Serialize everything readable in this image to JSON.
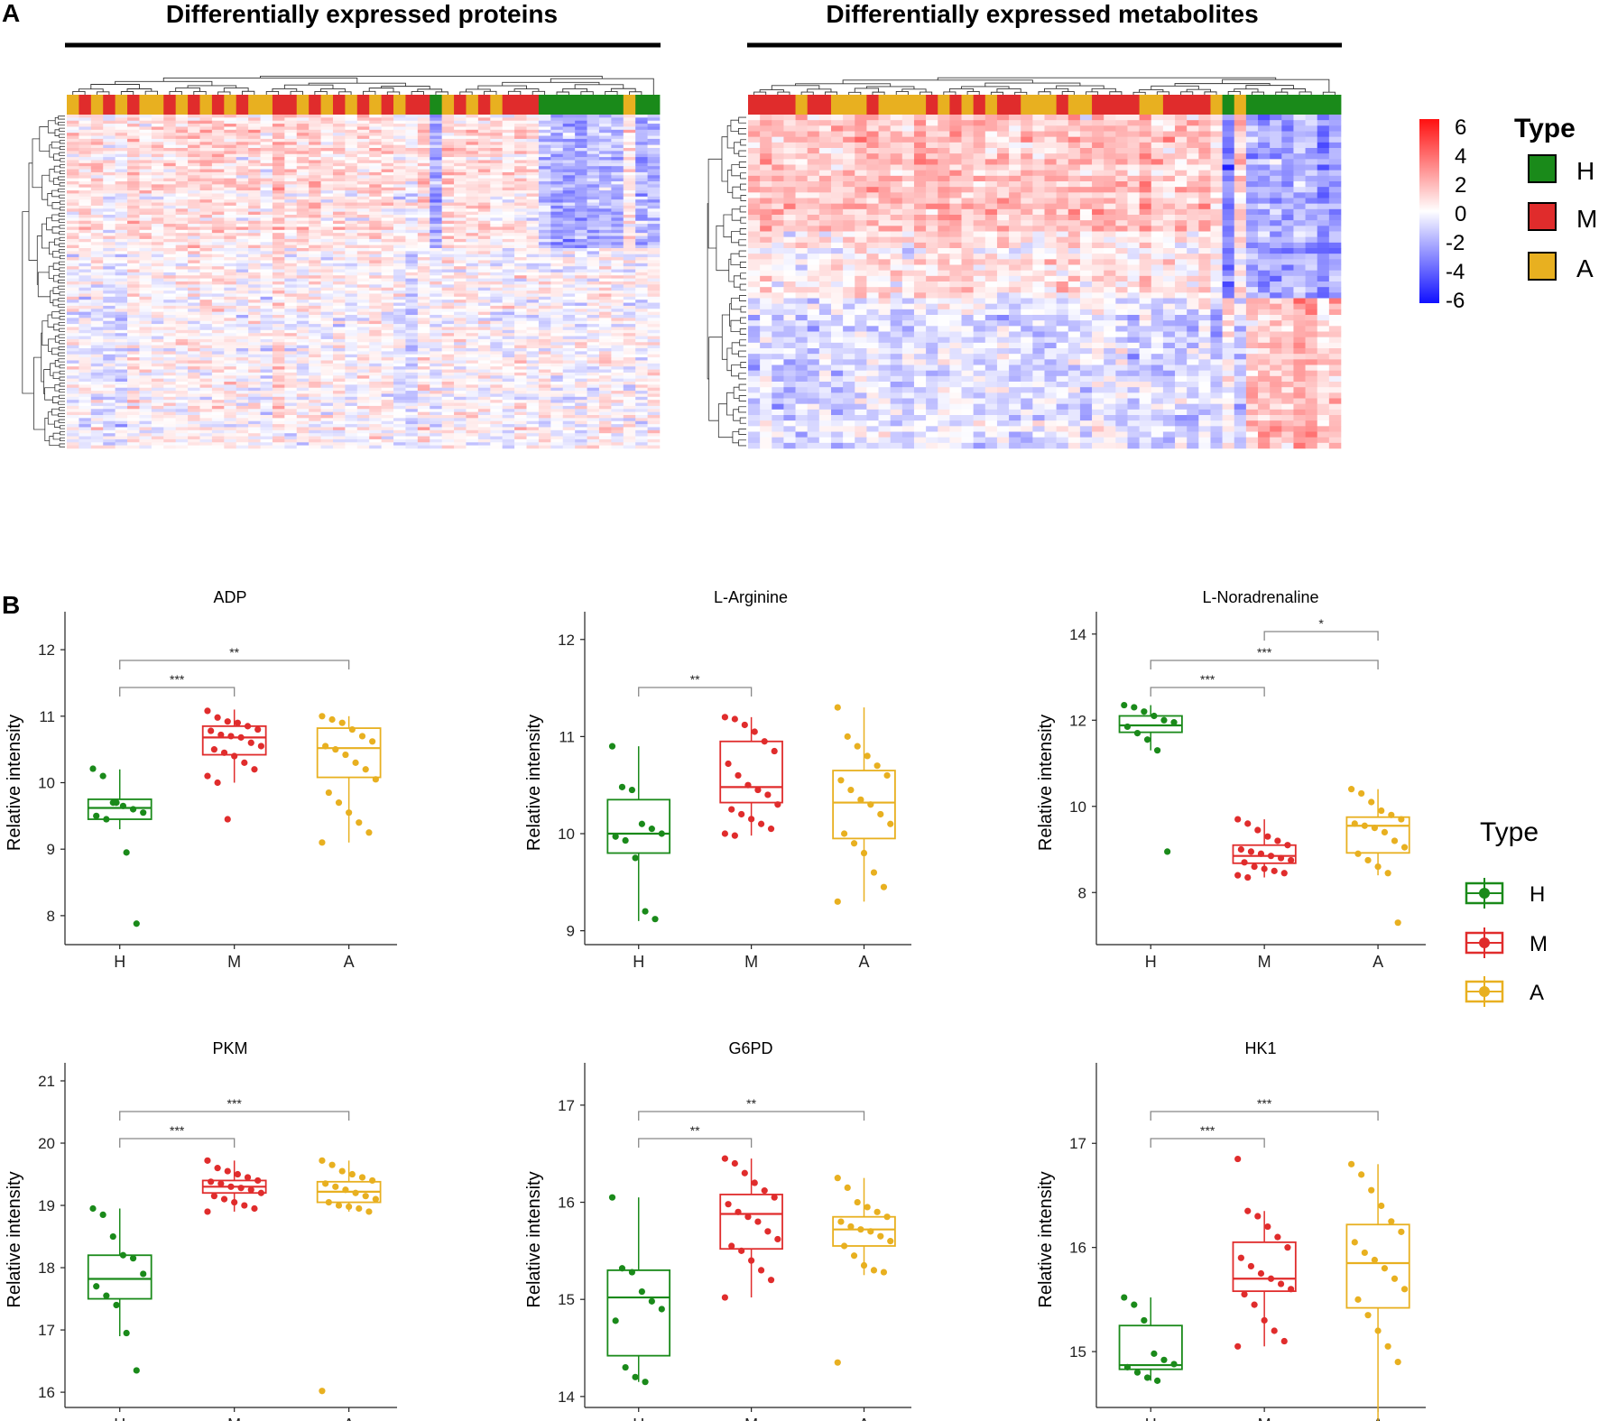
{
  "colors": {
    "H": "#1a8a1a",
    "M": "#e02c2c",
    "A": "#e8b020",
    "high": "#ff2020",
    "mid": "#ffffff",
    "low": "#1010ff"
  },
  "panelA": {
    "letter": "A",
    "left_title": "Differentially expressed proteins",
    "right_title": "Differentially expressed metabolites",
    "scale": {
      "ticks": [
        "6",
        "4",
        "2",
        "0",
        "-2",
        "-4",
        "-6"
      ],
      "min": -6,
      "max": 6
    },
    "legend": {
      "title": "Type",
      "items": [
        {
          "key": "H",
          "label": "H"
        },
        {
          "key": "M",
          "label": "M"
        },
        {
          "key": "A",
          "label": "A"
        }
      ]
    }
  },
  "panelB": {
    "letter": "B",
    "legend": {
      "title": "Type",
      "items": [
        {
          "key": "H",
          "label": "H"
        },
        {
          "key": "M",
          "label": "M"
        },
        {
          "key": "A",
          "label": "A"
        }
      ]
    }
  },
  "chart_data": [
    {
      "type": "heatmap",
      "title": "Differentially expressed proteins",
      "column_groups": [
        "A",
        "M",
        "A",
        "M",
        "A",
        "M",
        "A",
        "A",
        "M",
        "A",
        "M",
        "A",
        "M",
        "A",
        "M",
        "A",
        "A",
        "M",
        "M",
        "A",
        "M",
        "A",
        "M",
        "A",
        "M",
        "A",
        "M",
        "A",
        "M",
        "M",
        "H",
        "A",
        "M",
        "A",
        "M",
        "A",
        "M",
        "M",
        "M",
        "H",
        "H",
        "H",
        "H",
        "H",
        "H",
        "H",
        "A",
        "H",
        "H"
      ],
      "color_range": [
        -6,
        6
      ]
    },
    {
      "type": "heatmap",
      "title": "Differentially expressed metabolites",
      "column_groups": [
        "M",
        "M",
        "M",
        "M",
        "A",
        "M",
        "M",
        "A",
        "A",
        "A",
        "M",
        "A",
        "A",
        "A",
        "A",
        "M",
        "A",
        "M",
        "A",
        "M",
        "A",
        "M",
        "M",
        "A",
        "A",
        "A",
        "M",
        "A",
        "A",
        "M",
        "M",
        "M",
        "M",
        "A",
        "A",
        "M",
        "M",
        "M",
        "M",
        "A",
        "H",
        "A",
        "H",
        "H",
        "H",
        "H",
        "H",
        "H",
        "H",
        "H"
      ],
      "color_range": [
        -6,
        6
      ]
    },
    {
      "type": "box",
      "title": "ADP",
      "ylabel": "Relative intensity",
      "ylim": [
        7.7,
        12.3
      ],
      "yticks": [
        8,
        9,
        10,
        11,
        12
      ],
      "categories": [
        "H",
        "M",
        "A"
      ],
      "boxes": [
        {
          "group": "H",
          "q1": 9.45,
          "median": 9.62,
          "q3": 9.75,
          "whisker_low": 9.3,
          "whisker_high": 10.2,
          "points": [
            10.21,
            10.1,
            9.7,
            9.65,
            9.6,
            9.55,
            9.5,
            9.45,
            9.7,
            8.95,
            7.88
          ]
        },
        {
          "group": "M",
          "q1": 10.42,
          "median": 10.68,
          "q3": 10.85,
          "whisker_low": 10.0,
          "whisker_high": 11.1,
          "points": [
            11.08,
            10.98,
            10.92,
            10.9,
            10.85,
            10.8,
            10.78,
            10.72,
            10.7,
            10.68,
            10.6,
            10.55,
            10.5,
            10.45,
            10.4,
            10.3,
            10.2,
            10.1,
            10.0,
            9.45
          ]
        },
        {
          "group": "A",
          "q1": 10.08,
          "median": 10.52,
          "q3": 10.82,
          "whisker_low": 9.1,
          "whisker_high": 11.0,
          "points": [
            11.0,
            10.95,
            10.9,
            10.8,
            10.7,
            10.62,
            10.55,
            10.5,
            10.42,
            10.3,
            10.2,
            10.05,
            9.85,
            9.7,
            9.55,
            9.4,
            9.25,
            9.1
          ]
        }
      ],
      "comparisons": [
        {
          "from": "H",
          "to": "A",
          "label": "**"
        },
        {
          "from": "H",
          "to": "M",
          "label": "***"
        }
      ]
    },
    {
      "type": "box",
      "title": "L-Arginine",
      "ylabel": "Relative intensity",
      "ylim": [
        8.95,
        12.1
      ],
      "yticks": [
        9,
        10,
        11,
        12
      ],
      "categories": [
        "H",
        "M",
        "A"
      ],
      "boxes": [
        {
          "group": "H",
          "q1": 9.8,
          "median": 10.0,
          "q3": 10.35,
          "whisker_low": 9.1,
          "whisker_high": 10.9,
          "points": [
            10.9,
            10.48,
            10.45,
            10.1,
            10.05,
            10.0,
            9.97,
            9.93,
            9.75,
            9.2,
            9.12
          ]
        },
        {
          "group": "M",
          "q1": 10.32,
          "median": 10.48,
          "q3": 10.95,
          "whisker_low": 9.98,
          "whisker_high": 11.2,
          "points": [
            11.2,
            11.18,
            11.12,
            11.05,
            10.95,
            10.85,
            10.72,
            10.6,
            10.5,
            10.45,
            10.4,
            10.3,
            10.25,
            10.2,
            10.15,
            10.1,
            10.05,
            10.0,
            9.98
          ]
        },
        {
          "group": "A",
          "q1": 9.95,
          "median": 10.32,
          "q3": 10.65,
          "whisker_low": 9.3,
          "whisker_high": 11.3,
          "points": [
            11.3,
            11.0,
            10.9,
            10.8,
            10.7,
            10.6,
            10.55,
            10.45,
            10.35,
            10.3,
            10.2,
            10.1,
            10.0,
            9.9,
            9.8,
            9.6,
            9.45,
            9.3
          ]
        }
      ],
      "comparisons": [
        {
          "from": "H",
          "to": "M",
          "label": "**"
        }
      ]
    },
    {
      "type": "box",
      "title": "L-Noradrenaline",
      "ylabel": "Relative intensity",
      "ylim": [
        7.0,
        14.1
      ],
      "yticks": [
        8,
        10,
        12,
        14
      ],
      "categories": [
        "H",
        "M",
        "A"
      ],
      "boxes": [
        {
          "group": "H",
          "q1": 11.72,
          "median": 11.88,
          "q3": 12.1,
          "whisker_low": 11.3,
          "whisker_high": 12.35,
          "points": [
            12.35,
            12.3,
            12.2,
            12.1,
            12.0,
            11.95,
            11.85,
            11.7,
            11.55,
            11.3,
            8.95
          ]
        },
        {
          "group": "M",
          "q1": 8.68,
          "median": 8.85,
          "q3": 9.1,
          "whisker_low": 8.35,
          "whisker_high": 9.7,
          "points": [
            9.7,
            9.6,
            9.45,
            9.3,
            9.2,
            9.1,
            9.0,
            8.95,
            8.9,
            8.85,
            8.8,
            8.75,
            8.7,
            8.6,
            8.55,
            8.5,
            8.45,
            8.4,
            8.35
          ]
        },
        {
          "group": "A",
          "q1": 8.92,
          "median": 9.55,
          "q3": 9.75,
          "whisker_low": 8.4,
          "whisker_high": 10.4,
          "points": [
            10.4,
            10.3,
            10.1,
            9.9,
            9.8,
            9.7,
            9.6,
            9.55,
            9.5,
            9.4,
            9.2,
            9.05,
            8.9,
            8.75,
            8.6,
            8.45,
            7.3
          ]
        }
      ],
      "comparisons": [
        {
          "from": "M",
          "to": "A",
          "label": "*"
        },
        {
          "from": "H",
          "to": "A",
          "label": "***"
        },
        {
          "from": "H",
          "to": "M",
          "label": "***"
        }
      ]
    },
    {
      "type": "box",
      "title": "PKM",
      "ylabel": "Relative intensity",
      "ylim": [
        15.9,
        21.0
      ],
      "yticks": [
        16,
        17,
        18,
        19,
        20,
        21
      ],
      "categories": [
        "H",
        "M",
        "A"
      ],
      "boxes": [
        {
          "group": "H",
          "q1": 17.5,
          "median": 17.82,
          "q3": 18.2,
          "whisker_low": 16.9,
          "whisker_high": 18.95,
          "points": [
            18.95,
            18.85,
            18.5,
            18.2,
            18.15,
            17.9,
            17.7,
            17.55,
            17.4,
            16.95,
            16.35
          ]
        },
        {
          "group": "M",
          "q1": 19.2,
          "median": 19.3,
          "q3": 19.4,
          "whisker_low": 18.9,
          "whisker_high": 19.72,
          "points": [
            19.72,
            19.6,
            19.55,
            19.5,
            19.45,
            19.4,
            19.38,
            19.35,
            19.3,
            19.28,
            19.25,
            19.2,
            19.15,
            19.1,
            19.05,
            19.0,
            18.95,
            18.9
          ]
        },
        {
          "group": "A",
          "q1": 19.05,
          "median": 19.22,
          "q3": 19.38,
          "whisker_low": 18.9,
          "whisker_high": 19.72,
          "points": [
            19.72,
            19.65,
            19.55,
            19.5,
            19.45,
            19.4,
            19.35,
            19.3,
            19.25,
            19.2,
            19.15,
            19.1,
            19.05,
            19.0,
            18.98,
            18.95,
            18.9,
            16.02
          ]
        }
      ],
      "comparisons": [
        {
          "from": "H",
          "to": "A",
          "label": "***"
        },
        {
          "from": "H",
          "to": "M",
          "label": "***"
        }
      ]
    },
    {
      "type": "box",
      "title": "G6PD",
      "ylabel": "Relative intensity",
      "ylim": [
        13.98,
        17.25
      ],
      "yticks": [
        14,
        15,
        16,
        17
      ],
      "categories": [
        "H",
        "M",
        "A"
      ],
      "boxes": [
        {
          "group": "H",
          "q1": 14.42,
          "median": 15.02,
          "q3": 15.3,
          "whisker_low": 14.15,
          "whisker_high": 16.05,
          "points": [
            16.05,
            15.32,
            15.28,
            15.08,
            14.98,
            14.9,
            14.78,
            14.3,
            14.2,
            14.15
          ]
        },
        {
          "group": "M",
          "q1": 15.52,
          "median": 15.88,
          "q3": 16.08,
          "whisker_low": 15.02,
          "whisker_high": 16.45,
          "points": [
            16.45,
            16.4,
            16.3,
            16.2,
            16.12,
            16.05,
            15.98,
            15.9,
            15.85,
            15.8,
            15.7,
            15.62,
            15.55,
            15.5,
            15.4,
            15.3,
            15.2,
            15.02
          ]
        },
        {
          "group": "A",
          "q1": 15.55,
          "median": 15.72,
          "q3": 15.85,
          "whisker_low": 15.25,
          "whisker_high": 16.25,
          "points": [
            16.25,
            16.15,
            16.0,
            15.95,
            15.9,
            15.85,
            15.8,
            15.75,
            15.72,
            15.7,
            15.65,
            15.6,
            15.55,
            15.45,
            15.35,
            15.3,
            15.28,
            14.35
          ]
        }
      ],
      "comparisons": [
        {
          "from": "H",
          "to": "A",
          "label": "**"
        },
        {
          "from": "H",
          "to": "M",
          "label": "**"
        }
      ]
    },
    {
      "type": "box",
      "title": "HK1",
      "ylabel": "Relative intensity",
      "ylim": [
        14.55,
        17.6
      ],
      "yticks": [
        15,
        16,
        17
      ],
      "categories": [
        "H",
        "M",
        "A"
      ],
      "boxes": [
        {
          "group": "H",
          "q1": 14.83,
          "median": 14.87,
          "q3": 15.25,
          "whisker_low": 14.72,
          "whisker_high": 15.52,
          "points": [
            15.52,
            15.45,
            15.3,
            14.98,
            14.92,
            14.88,
            14.85,
            14.8,
            14.75,
            14.72
          ]
        },
        {
          "group": "M",
          "q1": 15.58,
          "median": 15.7,
          "q3": 16.05,
          "whisker_low": 15.05,
          "whisker_high": 16.35,
          "points": [
            16.85,
            16.35,
            16.3,
            16.2,
            16.1,
            16.0,
            15.9,
            15.82,
            15.75,
            15.7,
            15.65,
            15.6,
            15.55,
            15.45,
            15.3,
            15.2,
            15.1,
            15.05
          ]
        },
        {
          "group": "A",
          "q1": 15.42,
          "median": 15.85,
          "q3": 16.22,
          "whisker_low": 14.3,
          "whisker_high": 16.8,
          "points": [
            16.8,
            16.7,
            16.55,
            16.4,
            16.25,
            16.15,
            16.05,
            15.95,
            15.88,
            15.8,
            15.7,
            15.6,
            15.5,
            15.35,
            15.2,
            15.05,
            14.9,
            14.3
          ]
        }
      ],
      "comparisons": [
        {
          "from": "H",
          "to": "A",
          "label": "***"
        },
        {
          "from": "H",
          "to": "M",
          "label": "***"
        }
      ]
    }
  ]
}
